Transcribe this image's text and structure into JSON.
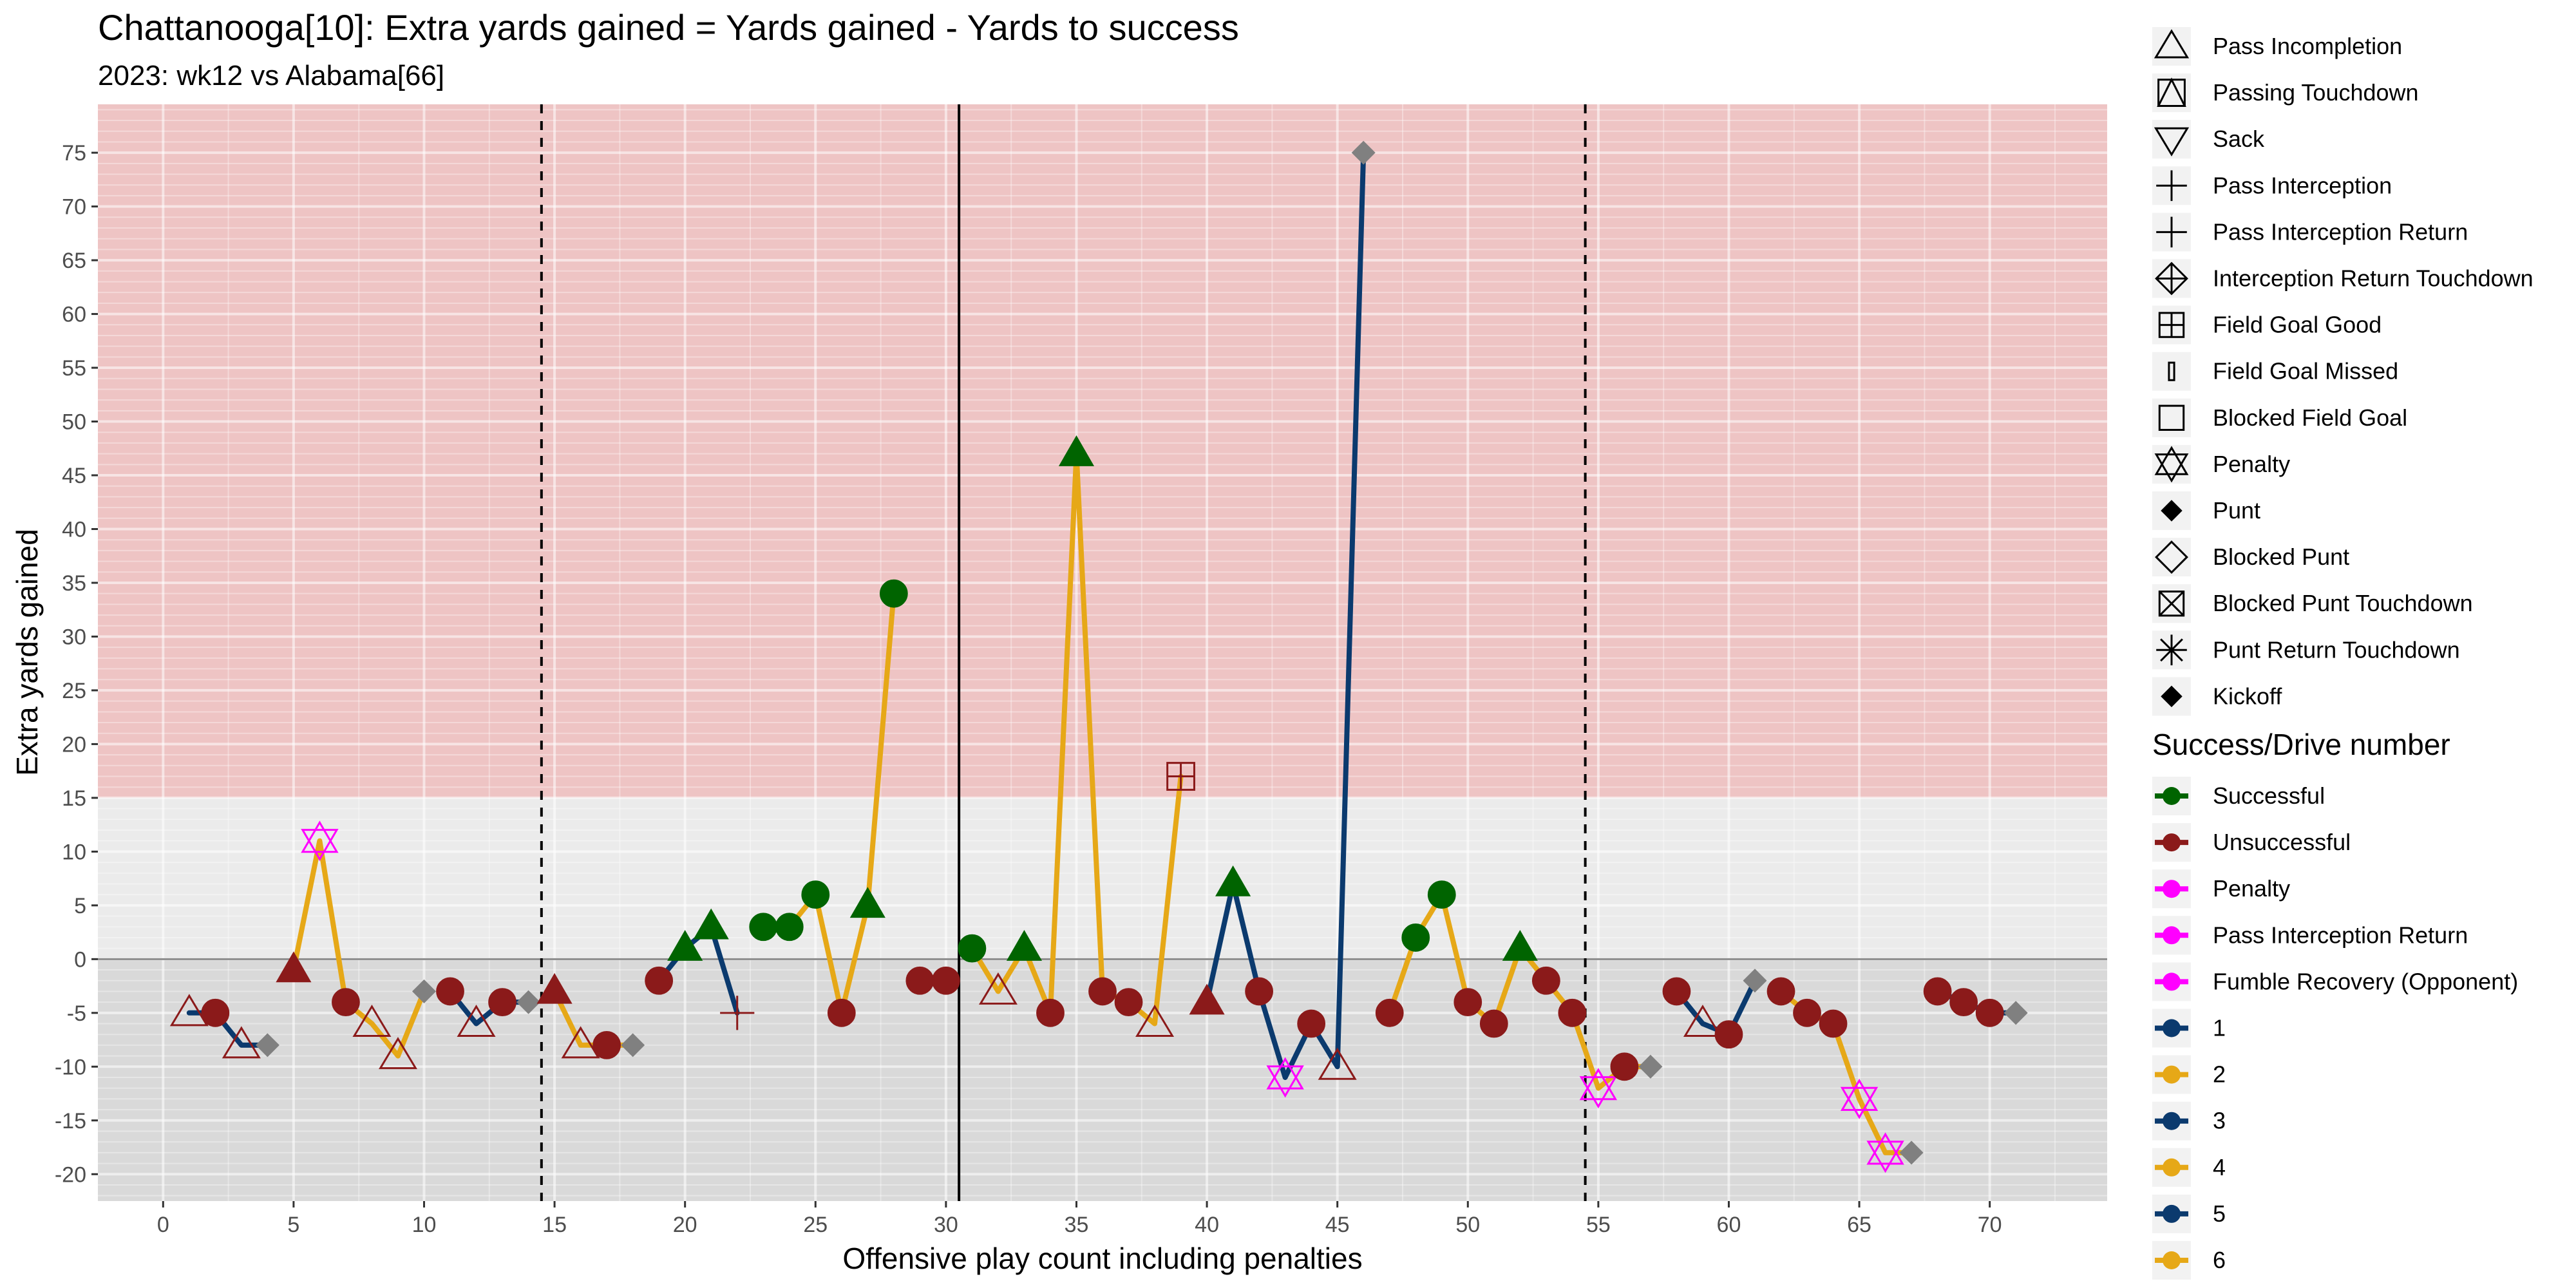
{
  "chart_data": {
    "type": "line",
    "title": "Chattanooga[10]: Extra yards gained = Yards gained - Yards to success",
    "subtitle": "2023: wk12 vs Alabama[66]",
    "xlabel": "Offensive play count including penalties",
    "ylabel": "Extra yards gained",
    "xlim": [
      -2.5,
      74.5
    ],
    "ylim": [
      -22.5,
      79.5
    ],
    "x_ticks": [
      0,
      5,
      10,
      15,
      20,
      25,
      30,
      35,
      40,
      45,
      50,
      55,
      60,
      65,
      70
    ],
    "y_ticks": [
      -20,
      -15,
      -10,
      -5,
      0,
      5,
      10,
      15,
      20,
      25,
      30,
      35,
      40,
      45,
      50,
      55,
      60,
      65,
      70,
      75
    ],
    "success_threshold": 15,
    "quarter_lines": [
      14.5,
      54.5
    ],
    "half_line": 30.5,
    "background_bands": [
      {
        "from": 15,
        "to": 79.5,
        "color": "#eec4c4"
      },
      {
        "from": 0,
        "to": 15,
        "color": "#ebebeb"
      },
      {
        "from": -22.5,
        "to": 0,
        "color": "#d9d9d9"
      }
    ],
    "colors": {
      "successful": "#006400",
      "unsuccessful": "#8b1a1a",
      "penalty": "#ff00ff",
      "drive_odd": "#0b3a6e",
      "drive_even": "#e6a817",
      "end_marker": "#808080"
    },
    "drives": [
      {
        "drive": 1,
        "points": [
          [
            1,
            -5
          ],
          [
            2,
            -5
          ],
          [
            3,
            -8
          ],
          [
            4,
            -8
          ]
        ]
      },
      {
        "drive": 2,
        "points": [
          [
            5,
            -1
          ],
          [
            6,
            11
          ],
          [
            7,
            -4
          ],
          [
            8,
            -6
          ],
          [
            9,
            -9
          ],
          [
            10,
            -3
          ]
        ]
      },
      {
        "drive": 3,
        "points": [
          [
            11,
            -3
          ],
          [
            12,
            -6
          ],
          [
            13,
            -4
          ],
          [
            14,
            -4
          ]
        ]
      },
      {
        "drive": 4,
        "points": [
          [
            15,
            -3
          ],
          [
            16,
            -8
          ],
          [
            17,
            -8
          ],
          [
            18,
            -8
          ]
        ]
      },
      {
        "drive": 5,
        "points": [
          [
            19,
            -2
          ],
          [
            20,
            1
          ],
          [
            21,
            3
          ],
          [
            22,
            -5
          ]
        ]
      },
      {
        "drive": 6,
        "points": [
          [
            23,
            3
          ],
          [
            24,
            3
          ],
          [
            25,
            6
          ],
          [
            26,
            -5
          ],
          [
            27,
            5
          ],
          [
            28,
            34
          ]
        ]
      },
      {
        "drive": 7,
        "points": [
          [
            29,
            -2
          ],
          [
            30,
            -2
          ]
        ]
      },
      {
        "drive": 8,
        "points": [
          [
            31,
            1
          ],
          [
            32,
            -3
          ],
          [
            33,
            1
          ],
          [
            34,
            -5
          ],
          [
            35,
            47
          ],
          [
            36,
            -3
          ],
          [
            37,
            -4
          ],
          [
            38,
            -6
          ],
          [
            39,
            17
          ]
        ]
      },
      {
        "drive": 9,
        "points": [
          [
            40,
            -4
          ],
          [
            41,
            7
          ],
          [
            42,
            -3
          ],
          [
            43,
            -11
          ],
          [
            44,
            -6
          ],
          [
            45,
            -10
          ],
          [
            46,
            75
          ]
        ]
      },
      {
        "drive": 10,
        "points": [
          [
            47,
            -5
          ],
          [
            48,
            2
          ],
          [
            49,
            6
          ],
          [
            50,
            -4
          ],
          [
            51,
            -6
          ],
          [
            52,
            1
          ],
          [
            53,
            -2
          ],
          [
            54,
            -5
          ],
          [
            55,
            -12
          ],
          [
            56,
            -10
          ],
          [
            57,
            -10
          ]
        ]
      },
      {
        "drive": 11,
        "points": [
          [
            58,
            -3
          ],
          [
            59,
            -6
          ],
          [
            60,
            -7
          ],
          [
            61,
            -2
          ]
        ]
      },
      {
        "drive": 12,
        "points": [
          [
            62,
            -3
          ],
          [
            63,
            -5
          ],
          [
            64,
            -6
          ],
          [
            65,
            -13
          ],
          [
            66,
            -18
          ],
          [
            67,
            -18
          ]
        ]
      },
      {
        "drive": 13,
        "points": [
          [
            68,
            -3
          ],
          [
            69,
            -4
          ],
          [
            70,
            -5
          ],
          [
            71,
            -5
          ]
        ]
      }
    ],
    "plays": [
      {
        "x": 1,
        "y": -5,
        "shape": "triangle-open",
        "color": "unsuccessful"
      },
      {
        "x": 2,
        "y": -5,
        "shape": "circle",
        "color": "unsuccessful"
      },
      {
        "x": 3,
        "y": -8,
        "shape": "triangle-open",
        "color": "unsuccessful"
      },
      {
        "x": 4,
        "y": -8,
        "shape": "diamond-small",
        "color": "end_marker"
      },
      {
        "x": 5,
        "y": -1,
        "shape": "triangle",
        "color": "unsuccessful"
      },
      {
        "x": 6,
        "y": 11,
        "shape": "star6",
        "color": "penalty"
      },
      {
        "x": 7,
        "y": -4,
        "shape": "circle",
        "color": "unsuccessful"
      },
      {
        "x": 8,
        "y": -6,
        "shape": "triangle-open",
        "color": "unsuccessful"
      },
      {
        "x": 9,
        "y": -9,
        "shape": "triangle-open",
        "color": "unsuccessful"
      },
      {
        "x": 10,
        "y": -3,
        "shape": "diamond-small",
        "color": "end_marker"
      },
      {
        "x": 11,
        "y": -3,
        "shape": "circle",
        "color": "unsuccessful"
      },
      {
        "x": 12,
        "y": -6,
        "shape": "triangle-open",
        "color": "unsuccessful"
      },
      {
        "x": 13,
        "y": -4,
        "shape": "circle",
        "color": "unsuccessful"
      },
      {
        "x": 14,
        "y": -4,
        "shape": "diamond-small",
        "color": "end_marker"
      },
      {
        "x": 15,
        "y": -3,
        "shape": "triangle",
        "color": "unsuccessful"
      },
      {
        "x": 16,
        "y": -8,
        "shape": "triangle-open",
        "color": "unsuccessful"
      },
      {
        "x": 17,
        "y": -8,
        "shape": "circle",
        "color": "unsuccessful"
      },
      {
        "x": 18,
        "y": -8,
        "shape": "diamond-small",
        "color": "end_marker"
      },
      {
        "x": 19,
        "y": -2,
        "shape": "circle",
        "color": "unsuccessful"
      },
      {
        "x": 20,
        "y": 1,
        "shape": "triangle",
        "color": "successful"
      },
      {
        "x": 21,
        "y": 3,
        "shape": "triangle",
        "color": "successful"
      },
      {
        "x": 22,
        "y": -5,
        "shape": "plus",
        "color": "unsuccessful"
      },
      {
        "x": 23,
        "y": 3,
        "shape": "circle",
        "color": "successful"
      },
      {
        "x": 24,
        "y": 3,
        "shape": "circle",
        "color": "successful"
      },
      {
        "x": 25,
        "y": 6,
        "shape": "circle",
        "color": "successful"
      },
      {
        "x": 26,
        "y": -5,
        "shape": "circle",
        "color": "unsuccessful"
      },
      {
        "x": 27,
        "y": 5,
        "shape": "triangle",
        "color": "successful"
      },
      {
        "x": 28,
        "y": 34,
        "shape": "circle",
        "color": "successful"
      },
      {
        "x": 29,
        "y": -2,
        "shape": "circle",
        "color": "unsuccessful"
      },
      {
        "x": 30,
        "y": -2,
        "shape": "circle",
        "color": "unsuccessful"
      },
      {
        "x": 31,
        "y": 1,
        "shape": "circle",
        "color": "successful"
      },
      {
        "x": 32,
        "y": -3,
        "shape": "triangle-open",
        "color": "unsuccessful"
      },
      {
        "x": 33,
        "y": 1,
        "shape": "triangle",
        "color": "successful"
      },
      {
        "x": 34,
        "y": -5,
        "shape": "circle",
        "color": "unsuccessful"
      },
      {
        "x": 35,
        "y": 47,
        "shape": "triangle",
        "color": "successful"
      },
      {
        "x": 36,
        "y": -3,
        "shape": "circle",
        "color": "unsuccessful"
      },
      {
        "x": 37,
        "y": -4,
        "shape": "circle",
        "color": "unsuccessful"
      },
      {
        "x": 38,
        "y": -6,
        "shape": "triangle-open",
        "color": "unsuccessful"
      },
      {
        "x": 39,
        "y": 17,
        "shape": "square-plus",
        "color": "unsuccessful"
      },
      {
        "x": 40,
        "y": -4,
        "shape": "triangle",
        "color": "unsuccessful"
      },
      {
        "x": 41,
        "y": 7,
        "shape": "triangle",
        "color": "successful"
      },
      {
        "x": 42,
        "y": -3,
        "shape": "circle",
        "color": "unsuccessful"
      },
      {
        "x": 43,
        "y": -11,
        "shape": "star6",
        "color": "penalty"
      },
      {
        "x": 44,
        "y": -6,
        "shape": "circle",
        "color": "unsuccessful"
      },
      {
        "x": 45,
        "y": -10,
        "shape": "triangle-open",
        "color": "unsuccessful"
      },
      {
        "x": 46,
        "y": 75,
        "shape": "diamond-small",
        "color": "end_marker"
      },
      {
        "x": 47,
        "y": -5,
        "shape": "circle",
        "color": "unsuccessful"
      },
      {
        "x": 48,
        "y": 2,
        "shape": "circle",
        "color": "successful"
      },
      {
        "x": 49,
        "y": 6,
        "shape": "circle",
        "color": "successful"
      },
      {
        "x": 50,
        "y": -4,
        "shape": "circle",
        "color": "unsuccessful"
      },
      {
        "x": 51,
        "y": -6,
        "shape": "circle",
        "color": "unsuccessful"
      },
      {
        "x": 52,
        "y": 1,
        "shape": "triangle",
        "color": "successful"
      },
      {
        "x": 53,
        "y": -2,
        "shape": "circle",
        "color": "unsuccessful"
      },
      {
        "x": 54,
        "y": -5,
        "shape": "circle",
        "color": "unsuccessful"
      },
      {
        "x": 55,
        "y": -12,
        "shape": "star6",
        "color": "penalty"
      },
      {
        "x": 56,
        "y": -10,
        "shape": "circle",
        "color": "unsuccessful"
      },
      {
        "x": 57,
        "y": -10,
        "shape": "diamond-small",
        "color": "end_marker"
      },
      {
        "x": 58,
        "y": -3,
        "shape": "circle",
        "color": "unsuccessful"
      },
      {
        "x": 59,
        "y": -6,
        "shape": "triangle-open",
        "color": "unsuccessful"
      },
      {
        "x": 60,
        "y": -7,
        "shape": "circle",
        "color": "unsuccessful"
      },
      {
        "x": 61,
        "y": -2,
        "shape": "diamond-small",
        "color": "end_marker"
      },
      {
        "x": 62,
        "y": -3,
        "shape": "circle",
        "color": "unsuccessful"
      },
      {
        "x": 63,
        "y": -5,
        "shape": "circle",
        "color": "unsuccessful"
      },
      {
        "x": 64,
        "y": -6,
        "shape": "circle",
        "color": "unsuccessful"
      },
      {
        "x": 65,
        "y": -13,
        "shape": "star6",
        "color": "penalty"
      },
      {
        "x": 66,
        "y": -18,
        "shape": "star6",
        "color": "penalty"
      },
      {
        "x": 67,
        "y": -18,
        "shape": "diamond-small",
        "color": "end_marker"
      },
      {
        "x": 68,
        "y": -3,
        "shape": "circle",
        "color": "unsuccessful"
      },
      {
        "x": 69,
        "y": -4,
        "shape": "circle",
        "color": "unsuccessful"
      },
      {
        "x": 70,
        "y": -5,
        "shape": "circle",
        "color": "unsuccessful"
      },
      {
        "x": 71,
        "y": -5,
        "shape": "diamond-small",
        "color": "end_marker"
      }
    ],
    "legend_shapes": [
      {
        "label": "Pass Incompletion",
        "shape": "triangle-open"
      },
      {
        "label": "Passing Touchdown",
        "shape": "triangle-square"
      },
      {
        "label": "Sack",
        "shape": "triangle-down-open"
      },
      {
        "label": "Pass Interception",
        "shape": "plus"
      },
      {
        "label": "Pass Interception Return",
        "shape": "plus"
      },
      {
        "label": "Interception Return Touchdown",
        "shape": "diamond-plus"
      },
      {
        "label": "Field Goal Good",
        "shape": "square-plus"
      },
      {
        "label": "Field Goal Missed",
        "shape": "thin-rect"
      },
      {
        "label": "Blocked Field Goal",
        "shape": "square-open"
      },
      {
        "label": "Penalty",
        "shape": "star6"
      },
      {
        "label": "Punt",
        "shape": "diamond-small"
      },
      {
        "label": "Blocked Punt",
        "shape": "diamond-open"
      },
      {
        "label": "Blocked Punt Touchdown",
        "shape": "square-x"
      },
      {
        "label": "Punt Return Touchdown",
        "shape": "asterisk"
      },
      {
        "label": "Kickoff",
        "shape": "diamond-small"
      }
    ],
    "legend_success_title": "Success/Drive number",
    "legend_success": [
      {
        "label": "Successful",
        "color": "#006400"
      },
      {
        "label": "Unsuccessful",
        "color": "#8b1a1a"
      },
      {
        "label": "Penalty",
        "color": "#ff00ff"
      },
      {
        "label": "Pass Interception Return",
        "color": "#ff00ff"
      },
      {
        "label": "Fumble Recovery (Opponent)",
        "color": "#ff00ff"
      },
      {
        "label": "1",
        "color": "#0b3a6e"
      },
      {
        "label": "2",
        "color": "#e6a817"
      },
      {
        "label": "3",
        "color": "#0b3a6e"
      },
      {
        "label": "4",
        "color": "#e6a817"
      },
      {
        "label": "5",
        "color": "#0b3a6e"
      },
      {
        "label": "6",
        "color": "#e6a817"
      }
    ]
  }
}
